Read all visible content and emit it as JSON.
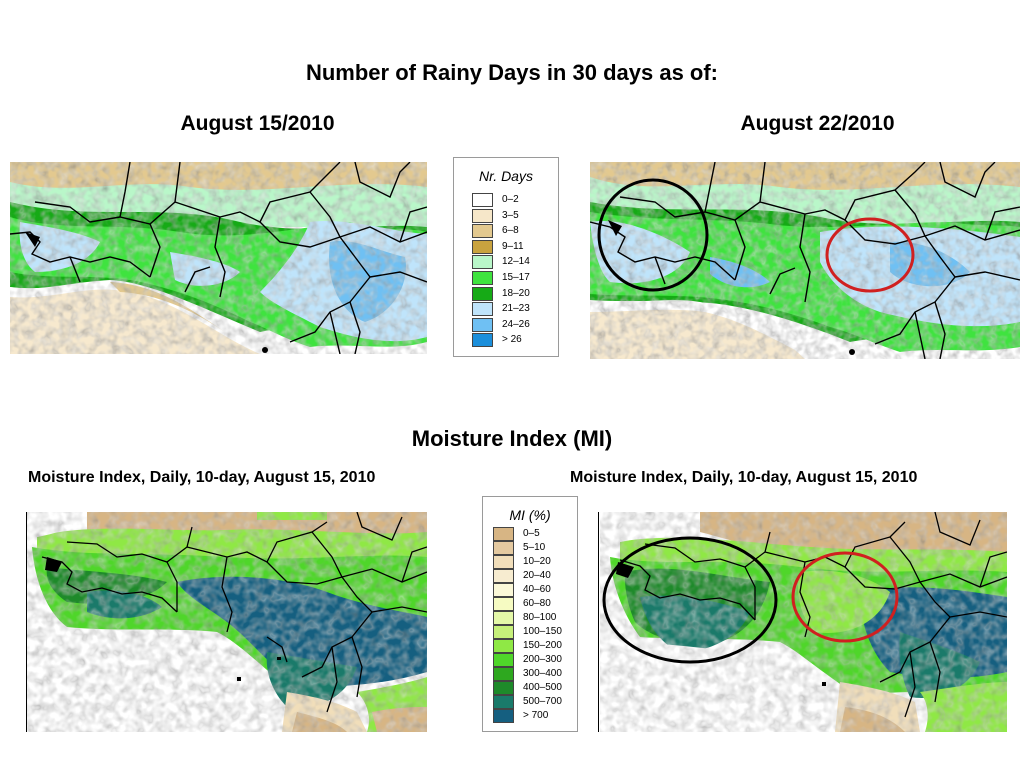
{
  "rain": {
    "title": "Number of Rainy Days in 30 days as of:",
    "date_left": "August 15/2010",
    "date_right": "August 22/2010",
    "legend_title": "Nr. Days",
    "legend": [
      {
        "label": "0–2",
        "color": "#ffffff"
      },
      {
        "label": "3–5",
        "color": "#f6e7c9"
      },
      {
        "label": "6–8",
        "color": "#e3c98f"
      },
      {
        "label": "9–11",
        "color": "#c9a33f"
      },
      {
        "label": "12–14",
        "color": "#b9f7c9"
      },
      {
        "label": "15–17",
        "color": "#3fe33f"
      },
      {
        "label": "18–20",
        "color": "#16aa16"
      },
      {
        "label": "21–23",
        "color": "#bfe4fb"
      },
      {
        "label": "24–26",
        "color": "#6fc0f3"
      },
      {
        "label": "> 26",
        "color": "#1c8fdb"
      }
    ]
  },
  "mi": {
    "title": "Moisture Index (MI)",
    "caption_left": "Moisture Index, Daily, 10-day, August 15, 2010",
    "caption_right": "Moisture Index, Daily, 10-day, August 15, 2010",
    "legend_title": "MI (%)",
    "legend": [
      {
        "label": "0–5",
        "color": "#d7b584"
      },
      {
        "label": "5–10",
        "color": "#e4c9a0"
      },
      {
        "label": "10–20",
        "color": "#f1deba"
      },
      {
        "label": "20–40",
        "color": "#f7ecd0"
      },
      {
        "label": "40–60",
        "color": "#fbf8d8"
      },
      {
        "label": "60–80",
        "color": "#f6fbc2"
      },
      {
        "label": "80–100",
        "color": "#e4f8a8"
      },
      {
        "label": "100–150",
        "color": "#c6f07a"
      },
      {
        "label": "150–200",
        "color": "#8fe845"
      },
      {
        "label": "200–300",
        "color": "#4fd62a"
      },
      {
        "label": "300–400",
        "color": "#2ea81f"
      },
      {
        "label": "400–500",
        "color": "#1e8a2a"
      },
      {
        "label": "500–700",
        "color": "#1a7a6a"
      },
      {
        "label": "> 700",
        "color": "#155f80"
      }
    ]
  }
}
